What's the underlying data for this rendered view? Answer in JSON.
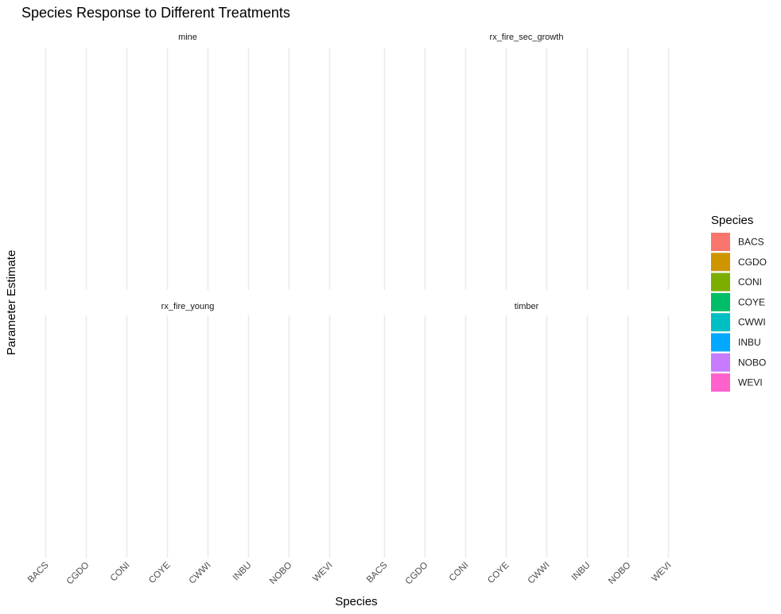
{
  "chart_data": {
    "type": "bar",
    "title": "Species Response to Different Treatments",
    "xlabel": "Species",
    "ylabel": "Parameter Estimate",
    "categories": [
      "BACS",
      "CGDO",
      "CONI",
      "COYE",
      "CWWI",
      "INBU",
      "NOBO",
      "WEVI"
    ],
    "facets": [
      "mine",
      "rx_fire_sec_growth",
      "rx_fire_young",
      "timber"
    ],
    "series": [],
    "grid": true,
    "legend": {
      "title": "Species",
      "position": "right",
      "items": [
        {
          "label": "BACS",
          "color": "#F8766D"
        },
        {
          "label": "CGDO",
          "color": "#CD9600"
        },
        {
          "label": "CONI",
          "color": "#7CAE00"
        },
        {
          "label": "COYE",
          "color": "#00BE67"
        },
        {
          "label": "CWWI",
          "color": "#00BFC4"
        },
        {
          "label": "INBU",
          "color": "#00A9FF"
        },
        {
          "label": "NOBO",
          "color": "#C77CFF"
        },
        {
          "label": "WEVI",
          "color": "#FF61CC"
        }
      ]
    }
  }
}
